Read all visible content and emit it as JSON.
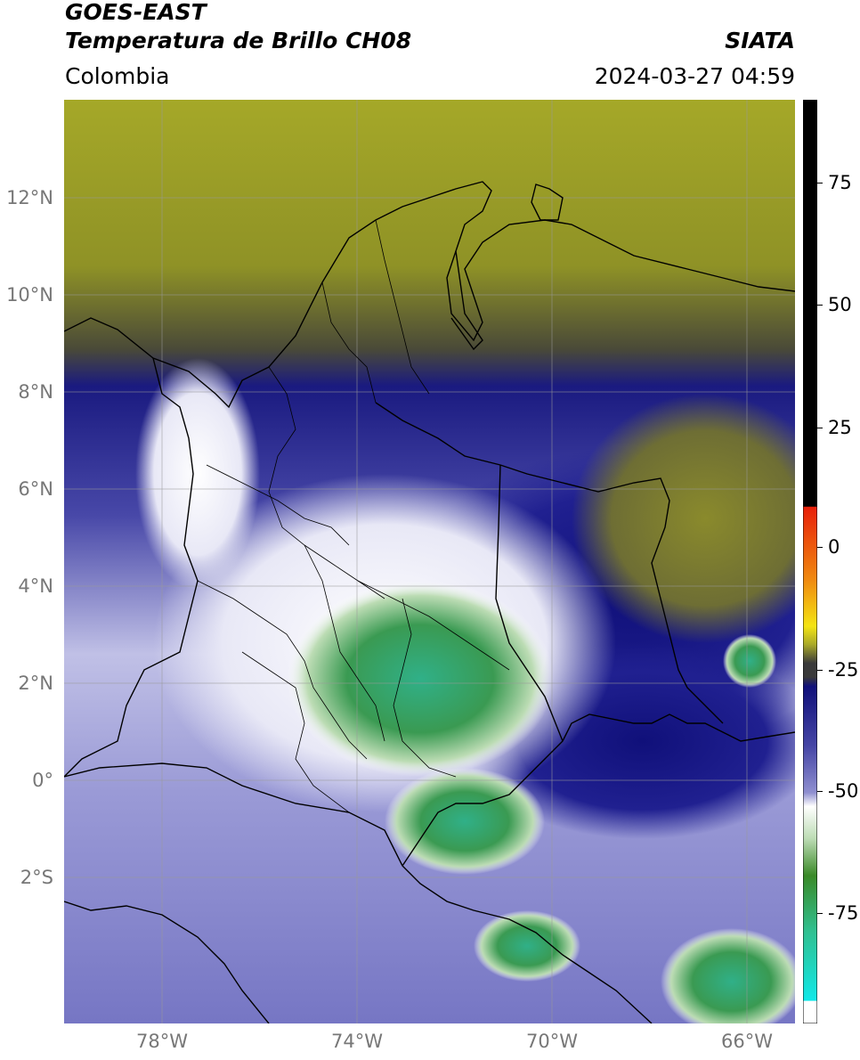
{
  "header": {
    "satellite": "GOES-EAST",
    "product": "Temperatura de Brillo CH08",
    "source": "SIATA",
    "region": "Colombia",
    "timestamp": "2024-03-27 04:59"
  },
  "map": {
    "lat_labels": [
      "12°N",
      "10°N",
      "8°N",
      "6°N",
      "4°N",
      "2°N",
      "0°",
      "2°S"
    ],
    "lon_labels": [
      "78°W",
      "74°W",
      "70°W",
      "66°W"
    ]
  },
  "colorbar": {
    "ticks": [
      "75",
      "50",
      "25",
      "0",
      "-25",
      "-50",
      "-75"
    ],
    "colors": {
      "black": "#000000",
      "red": "#e8200a",
      "orange": "#f08a10",
      "yellow": "#f4e414",
      "olive": "#a8a828",
      "dark_gray": "#3a3a3a",
      "navy": "#10107a",
      "lavender": "#8f8fd0",
      "white": "#ffffff",
      "green": "#3a8a28",
      "teal": "#30c090",
      "cyan": "#10e8e8"
    }
  }
}
